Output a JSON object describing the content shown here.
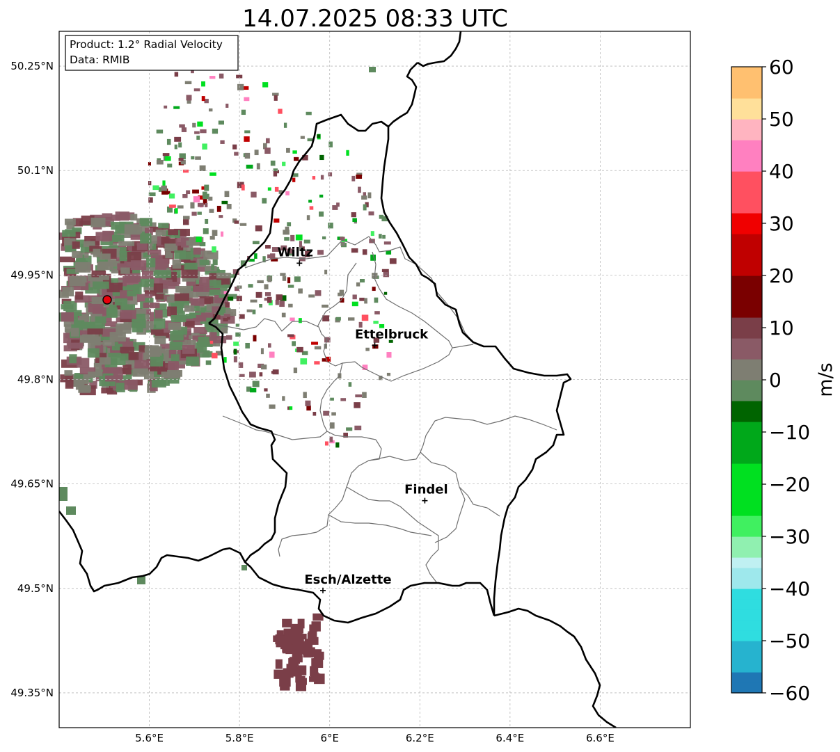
{
  "title": "14.07.2025 08:33 UTC",
  "info_box": {
    "product": "Product: 1.2° Radial Velocity",
    "data": "Data: RMIB"
  },
  "map": {
    "lon_range": [
      5.4,
      6.8
    ],
    "lat_range": [
      49.3,
      50.3
    ],
    "lon_ticks": [
      "5.6°E",
      "5.8°E",
      "6°E",
      "6.2°E",
      "6.4°E",
      "6.6°E"
    ],
    "lat_ticks": [
      "50.25°N",
      "50.1°N",
      "49.95°N",
      "49.8°N",
      "49.65°N",
      "49.5°N",
      "49.35°N"
    ],
    "grid": true,
    "radar_site": {
      "lon": 5.505,
      "lat": 49.914
    },
    "cities": [
      {
        "name": "Wiltz",
        "lon": 5.933,
        "lat": 49.967
      },
      {
        "name": "Ettelbruck",
        "lon": 6.1,
        "lat": 49.849
      },
      {
        "name": "Findel",
        "lon": 6.211,
        "lat": 49.626
      },
      {
        "name": "Esch/Alzette",
        "lon": 5.985,
        "lat": 49.497
      }
    ]
  },
  "colorbar": {
    "label": "m/s",
    "min": -60,
    "max": 60,
    "tick_labels": [
      "60",
      "50",
      "40",
      "30",
      "20",
      "10",
      "0",
      "−10",
      "−20",
      "−30",
      "−40",
      "−50",
      "−60"
    ],
    "colors": {
      "v_-60": "#1f77b4",
      "v_-55": "#26b3cf",
      "v_-50": "#2fdde0",
      "v_-40": "#9ee8ec",
      "v_-36": "#c0f0f2",
      "v_-34": "#90f0b0",
      "v_-30": "#40f060",
      "v_-25": "#00e020",
      "v_-15": "#00a81a",
      "v_-8": "#006400",
      "v_-4": "#5e8a5e",
      "v_0": "#7e7e72",
      "v_4": "#8a5a66",
      "v_8": "#7a3e48",
      "v_12": "#7a0000",
      "v_20": "#c00000",
      "v_28": "#f00000",
      "v_32": "#ff5060",
      "v_40": "#ff80c0",
      "v_46": "#ffb4c0",
      "v_50": "#ffe09a",
      "v_55": "#ffc070",
      "v_60": "#ff9a50"
    }
  }
}
